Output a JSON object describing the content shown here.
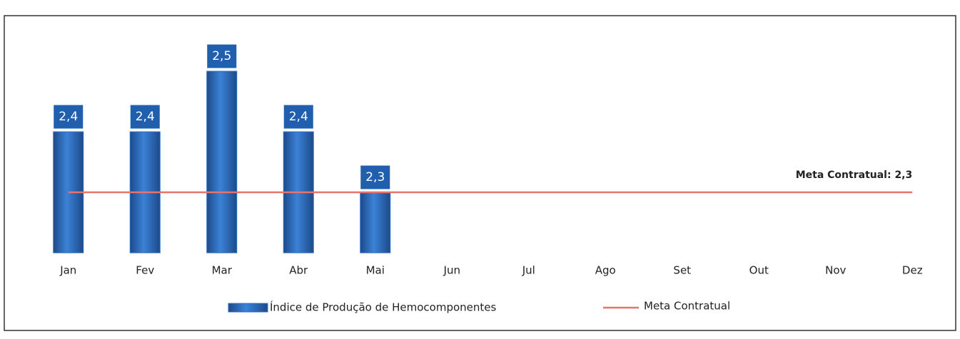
{
  "chart_data": {
    "type": "bar",
    "categories": [
      "Jan",
      "Fev",
      "Mar",
      "Abr",
      "Mai",
      "Jun",
      "Jul",
      "Ago",
      "Set",
      "Out",
      "Nov",
      "Dez"
    ],
    "ylim": [
      2.2,
      2.6
    ],
    "series": [
      {
        "name": "Índice de Produção de Hemocomponentes",
        "type": "bar",
        "color": "#2e6fc4",
        "values": [
          2.4,
          2.4,
          2.5,
          2.4,
          2.3,
          null,
          null,
          null,
          null,
          null,
          null,
          null
        ],
        "value_labels": [
          "2,4",
          "2,4",
          "2,5",
          "2,4",
          "2,3",
          null,
          null,
          null,
          null,
          null,
          null,
          null
        ]
      },
      {
        "name": "Meta Contratual",
        "type": "line",
        "color": "#e8736b",
        "values": [
          2.3,
          2.3,
          2.3,
          2.3,
          2.3,
          2.3,
          2.3,
          2.3,
          2.3,
          2.3,
          2.3,
          2.3
        ]
      }
    ],
    "annotations": [
      {
        "text": "Meta Contratual: 2,3"
      }
    ],
    "legend": "bottom"
  }
}
